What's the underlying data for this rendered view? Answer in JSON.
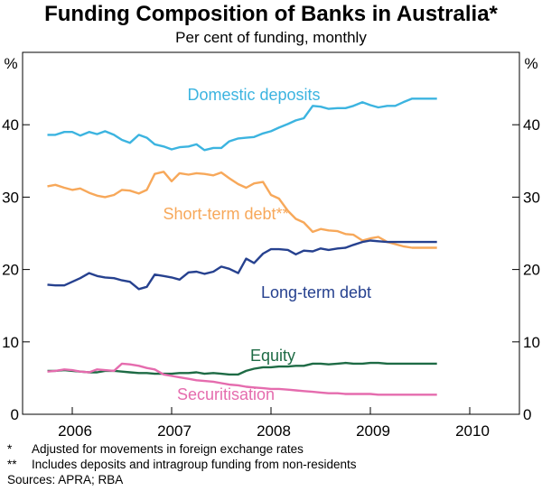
{
  "header": {
    "title": "Funding Composition of Banks in Australia*",
    "subtitle": "Per cent of funding, monthly"
  },
  "chart_data": {
    "type": "line",
    "title": "Funding Composition of Banks in Australia*",
    "subtitle": "Per cent of funding, monthly",
    "ylabel_left": "%",
    "ylabel_right": "%",
    "ylim": [
      0,
      50
    ],
    "yticks": [
      0,
      10,
      20,
      30,
      40
    ],
    "xlim": [
      2005.5,
      2010.5
    ],
    "xticks": [
      "2006",
      "2007",
      "2008",
      "2009",
      "2010"
    ],
    "grid": false,
    "series": [
      {
        "name": "Domestic deposits",
        "color": "#3cb4e0",
        "x": [
          2005.75,
          2005.83,
          2005.92,
          2006.0,
          2006.08,
          2006.17,
          2006.25,
          2006.33,
          2006.42,
          2006.5,
          2006.58,
          2006.67,
          2006.75,
          2006.83,
          2006.92,
          2007.0,
          2007.08,
          2007.17,
          2007.25,
          2007.33,
          2007.42,
          2007.5,
          2007.58,
          2007.67,
          2007.75,
          2007.83,
          2007.92,
          2008.0,
          2008.08,
          2008.17,
          2008.25,
          2008.33,
          2008.42,
          2008.5,
          2008.58,
          2008.67,
          2008.75,
          2008.83,
          2008.92,
          2009.0,
          2009.08,
          2009.17,
          2009.25,
          2009.33,
          2009.42,
          2009.5,
          2009.58,
          2009.67
        ],
        "values": [
          38.6,
          38.6,
          39.0,
          39.0,
          38.5,
          39.0,
          38.7,
          39.1,
          38.6,
          37.9,
          37.5,
          38.6,
          38.2,
          37.3,
          37.0,
          36.6,
          36.9,
          37.0,
          37.3,
          36.5,
          36.8,
          36.8,
          37.7,
          38.1,
          38.2,
          38.3,
          38.8,
          39.1,
          39.6,
          40.1,
          40.6,
          40.9,
          42.6,
          42.5,
          42.2,
          42.3,
          42.3,
          42.6,
          43.1,
          42.7,
          42.4,
          42.6,
          42.6,
          43.1,
          43.6,
          43.6,
          43.6,
          43.6
        ]
      },
      {
        "name": "Short-term debt**",
        "color": "#f7a85a",
        "x": [
          2005.75,
          2005.83,
          2005.92,
          2006.0,
          2006.08,
          2006.17,
          2006.25,
          2006.33,
          2006.42,
          2006.5,
          2006.58,
          2006.67,
          2006.75,
          2006.83,
          2006.92,
          2007.0,
          2007.08,
          2007.17,
          2007.25,
          2007.33,
          2007.42,
          2007.5,
          2007.58,
          2007.67,
          2007.75,
          2007.83,
          2007.92,
          2008.0,
          2008.08,
          2008.17,
          2008.25,
          2008.33,
          2008.42,
          2008.5,
          2008.58,
          2008.67,
          2008.75,
          2008.83,
          2008.92,
          2009.0,
          2009.08,
          2009.17,
          2009.25,
          2009.33,
          2009.42,
          2009.5,
          2009.58,
          2009.67
        ],
        "values": [
          31.5,
          31.7,
          31.3,
          31.0,
          31.2,
          30.6,
          30.2,
          30.0,
          30.3,
          31.0,
          30.9,
          30.5,
          31.0,
          33.2,
          33.5,
          32.2,
          33.3,
          33.1,
          33.3,
          33.2,
          33.0,
          33.4,
          32.6,
          31.8,
          31.3,
          31.9,
          32.1,
          30.3,
          29.8,
          28.1,
          27.0,
          26.5,
          25.2,
          25.6,
          25.4,
          25.3,
          24.9,
          24.8,
          24.0,
          24.3,
          24.5,
          23.8,
          23.5,
          23.2,
          23.0,
          23.0,
          23.0,
          23.0
        ]
      },
      {
        "name": "Long-term debt",
        "color": "#26418f",
        "x": [
          2005.75,
          2005.83,
          2005.92,
          2006.0,
          2006.08,
          2006.17,
          2006.25,
          2006.33,
          2006.42,
          2006.5,
          2006.58,
          2006.67,
          2006.75,
          2006.83,
          2006.92,
          2007.0,
          2007.08,
          2007.17,
          2007.25,
          2007.33,
          2007.42,
          2007.5,
          2007.58,
          2007.67,
          2007.75,
          2007.83,
          2007.92,
          2008.0,
          2008.08,
          2008.17,
          2008.25,
          2008.33,
          2008.42,
          2008.5,
          2008.58,
          2008.67,
          2008.75,
          2008.83,
          2008.92,
          2009.0,
          2009.08,
          2009.17,
          2009.25,
          2009.33,
          2009.42,
          2009.5,
          2009.58,
          2009.67
        ],
        "values": [
          17.9,
          17.8,
          17.8,
          18.3,
          18.8,
          19.5,
          19.1,
          18.9,
          18.8,
          18.5,
          18.3,
          17.3,
          17.6,
          19.3,
          19.1,
          18.9,
          18.6,
          19.6,
          19.7,
          19.4,
          19.7,
          20.4,
          20.1,
          19.5,
          21.5,
          20.9,
          22.2,
          22.8,
          22.8,
          22.7,
          22.1,
          22.6,
          22.5,
          22.9,
          22.7,
          22.9,
          23.0,
          23.4,
          23.8,
          24.0,
          23.9,
          23.8,
          23.8,
          23.8,
          23.8,
          23.8,
          23.8,
          23.8
        ]
      },
      {
        "name": "Equity",
        "color": "#1e6b45",
        "x": [
          2005.75,
          2005.83,
          2005.92,
          2006.0,
          2006.08,
          2006.17,
          2006.25,
          2006.33,
          2006.42,
          2006.5,
          2006.58,
          2006.67,
          2006.75,
          2006.83,
          2006.92,
          2007.0,
          2007.08,
          2007.17,
          2007.25,
          2007.33,
          2007.42,
          2007.5,
          2007.58,
          2007.67,
          2007.75,
          2007.83,
          2007.92,
          2008.0,
          2008.08,
          2008.17,
          2008.25,
          2008.33,
          2008.42,
          2008.5,
          2008.58,
          2008.67,
          2008.75,
          2008.83,
          2008.92,
          2009.0,
          2009.08,
          2009.17,
          2009.25,
          2009.33,
          2009.42,
          2009.5,
          2009.58,
          2009.67
        ],
        "values": [
          6.0,
          6.0,
          6.1,
          6.0,
          5.9,
          5.8,
          5.8,
          6.0,
          6.0,
          5.9,
          5.8,
          5.7,
          5.7,
          5.6,
          5.6,
          5.6,
          5.7,
          5.7,
          5.8,
          5.6,
          5.7,
          5.6,
          5.5,
          5.5,
          6.0,
          6.3,
          6.5,
          6.5,
          6.6,
          6.6,
          6.7,
          6.7,
          7.0,
          7.0,
          6.9,
          7.0,
          7.1,
          7.0,
          7.0,
          7.1,
          7.1,
          7.0,
          7.0,
          7.0,
          7.0,
          7.0,
          7.0,
          7.0
        ]
      },
      {
        "name": "Securitisation",
        "color": "#e56cae",
        "x": [
          2005.75,
          2005.83,
          2005.92,
          2006.0,
          2006.08,
          2006.17,
          2006.25,
          2006.33,
          2006.42,
          2006.5,
          2006.58,
          2006.67,
          2006.75,
          2006.83,
          2006.92,
          2007.0,
          2007.08,
          2007.17,
          2007.25,
          2007.33,
          2007.42,
          2007.5,
          2007.58,
          2007.67,
          2007.75,
          2007.83,
          2007.92,
          2008.0,
          2008.08,
          2008.17,
          2008.25,
          2008.33,
          2008.42,
          2008.5,
          2008.58,
          2008.67,
          2008.75,
          2008.83,
          2008.92,
          2009.0,
          2009.08,
          2009.17,
          2009.25,
          2009.33,
          2009.42,
          2009.5,
          2009.58,
          2009.67
        ],
        "values": [
          5.9,
          6.0,
          6.2,
          6.1,
          5.9,
          5.8,
          6.2,
          6.1,
          6.0,
          7.0,
          6.9,
          6.7,
          6.4,
          6.2,
          5.5,
          5.3,
          5.1,
          4.9,
          4.7,
          4.6,
          4.5,
          4.3,
          4.1,
          4.0,
          3.8,
          3.7,
          3.6,
          3.5,
          3.5,
          3.4,
          3.3,
          3.2,
          3.1,
          3.0,
          2.9,
          2.9,
          2.8,
          2.8,
          2.8,
          2.8,
          2.7,
          2.7,
          2.7,
          2.7,
          2.7,
          2.7,
          2.7,
          2.7
        ]
      }
    ],
    "annotations": [
      {
        "text": "Domestic deposits",
        "series": 0
      },
      {
        "text": "Short-term debt**",
        "series": 1
      },
      {
        "text": "Long-term debt",
        "series": 2
      },
      {
        "text": "Equity",
        "series": 3
      },
      {
        "text": "Securitisation",
        "series": 4
      }
    ]
  },
  "notes": [
    {
      "mark": "*",
      "text": "Adjusted for movements in foreign exchange rates"
    },
    {
      "mark": "**",
      "text": "Includes deposits and intragroup funding from non-residents"
    }
  ],
  "sources": "Sources: APRA; RBA"
}
